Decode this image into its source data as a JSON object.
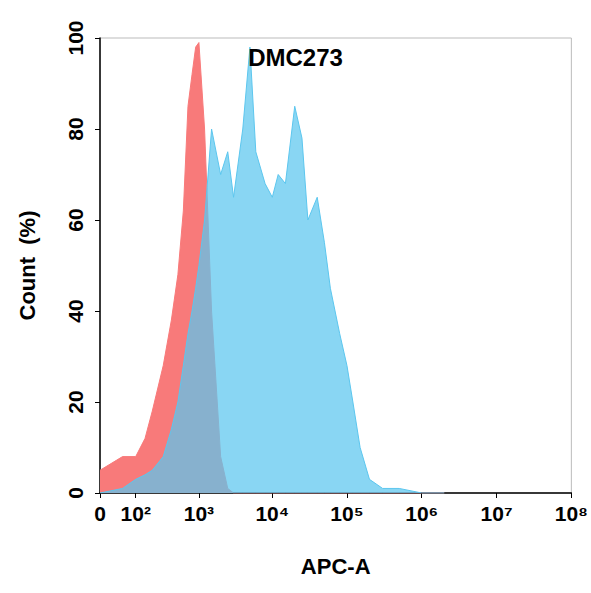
{
  "chart_data": {
    "type": "area",
    "title": "DMC273",
    "x_label": "APC-A",
    "y_label": "Count  (%)",
    "log": "x",
    "grid": false,
    "x": [
      0,
      50,
      100,
      150,
      200,
      300,
      400,
      500,
      600,
      700,
      800,
      900,
      1000,
      1200,
      1500,
      2000,
      2500,
      3000,
      4000,
      5000,
      6000,
      8000,
      10000,
      12000,
      15000,
      20000,
      25000,
      30000,
      40000,
      50000,
      60000,
      80000,
      100000,
      120000,
      150000,
      200000,
      300000,
      500000,
      1000000,
      2000000
    ],
    "series": [
      {
        "color": "#f87a7a",
        "values": [
          5,
          8,
          8,
          12,
          18,
          28,
          38,
          48,
          62,
          85,
          92,
          98,
          99,
          80,
          40,
          8,
          1,
          0,
          0,
          0,
          0,
          0,
          0,
          0,
          0,
          0,
          0,
          0,
          0,
          0,
          0,
          0,
          0,
          0,
          0,
          0,
          0,
          0,
          0,
          0
        ]
      },
      {
        "color": "#5cc6ee",
        "values": [
          0,
          1,
          3,
          4,
          5,
          8,
          14,
          20,
          28,
          35,
          40,
          45,
          50,
          60,
          80,
          70,
          75,
          65,
          80,
          98,
          75,
          68,
          65,
          70,
          68,
          85,
          78,
          60,
          65,
          55,
          45,
          35,
          28,
          20,
          10,
          3,
          1,
          1,
          0,
          0
        ]
      }
    ],
    "xlim": [
      0,
      100000000
    ],
    "xticks": [
      0,
      {
        "value": 100,
        "label": "10²"
      },
      {
        "value": 1000,
        "label": "10³"
      },
      {
        "value": 10000,
        "label": "10⁴"
      },
      {
        "value": 100000,
        "label": "10⁵"
      },
      {
        "value": 1000000,
        "label": "10⁶"
      },
      {
        "value": 10000000,
        "label": "10⁷"
      },
      {
        "value": 100000000,
        "label": "10⁸"
      }
    ],
    "ylim": [
      0,
      100
    ],
    "yticks": [
      0,
      20,
      40,
      60,
      80,
      100
    ]
  }
}
